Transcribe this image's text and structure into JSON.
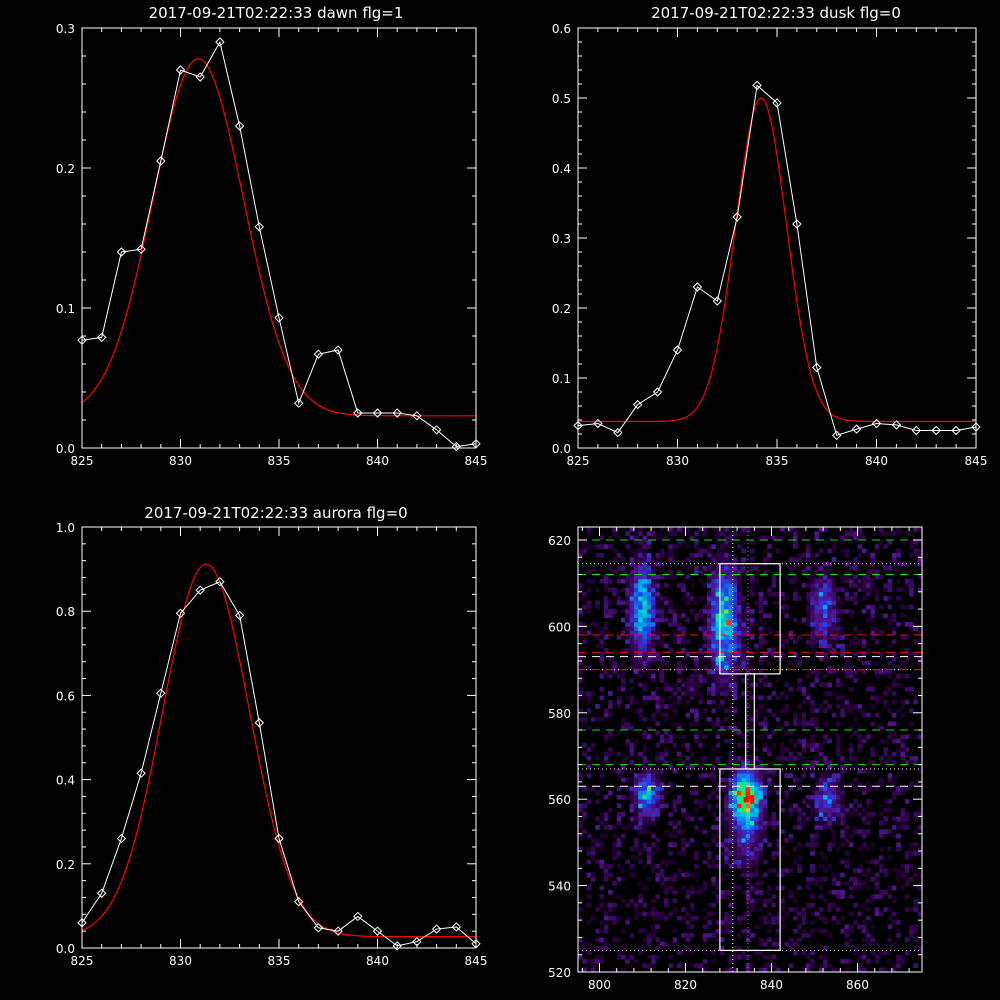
{
  "chart_data": [
    {
      "type": "line",
      "title": "2017-09-21T02:22:33 dawn flg=1",
      "xlim": [
        825,
        845
      ],
      "ylim": [
        0.0,
        0.3
      ],
      "xticks": [
        825,
        830,
        835,
        840,
        845
      ],
      "xtick_labels": [
        "825",
        "830",
        "835",
        "840",
        "845"
      ],
      "yticks": [
        0.0,
        0.1,
        0.2,
        0.3
      ],
      "ytick_labels": [
        "0.0",
        "0.1",
        "0.2",
        "0.3"
      ],
      "grid": false,
      "series": [
        {
          "style": "data",
          "color": "#ffffff",
          "marker": "diamond",
          "x": [
            825,
            826,
            827,
            828,
            829,
            830,
            831,
            832,
            833,
            834,
            835,
            836,
            837,
            838,
            839,
            840,
            841,
            842,
            843,
            844,
            845
          ],
          "y": [
            0.077,
            0.079,
            0.14,
            0.142,
            0.205,
            0.27,
            0.265,
            0.29,
            0.23,
            0.158,
            0.093,
            0.032,
            0.067,
            0.07,
            0.025,
            0.025,
            0.025,
            0.023,
            0.013,
            0.001,
            0.003
          ]
        },
        {
          "style": "fit",
          "color": "#ff0000",
          "gauss": {
            "amp": 0.255,
            "center": 830.9,
            "sigma": 2.3,
            "offset": 0.023
          }
        }
      ]
    },
    {
      "type": "line",
      "title": "2017-09-21T02:22:33 dusk flg=0",
      "xlim": [
        825,
        845
      ],
      "ylim": [
        0.0,
        0.6
      ],
      "xticks": [
        825,
        830,
        835,
        840,
        845
      ],
      "xtick_labels": [
        "825",
        "830",
        "835",
        "840",
        "845"
      ],
      "yticks": [
        0.0,
        0.1,
        0.2,
        0.3,
        0.4,
        0.5,
        0.6
      ],
      "ytick_labels": [
        "0.0",
        "0.1",
        "0.2",
        "0.3",
        "0.4",
        "0.5",
        "0.6"
      ],
      "grid": false,
      "series": [
        {
          "style": "data",
          "color": "#ffffff",
          "marker": "diamond",
          "x": [
            825,
            826,
            827,
            828,
            829,
            830,
            831,
            832,
            833,
            834,
            835,
            836,
            837,
            838,
            839,
            840,
            841,
            842,
            843,
            844,
            845
          ],
          "y": [
            0.032,
            0.035,
            0.022,
            0.062,
            0.08,
            0.14,
            0.23,
            0.21,
            0.33,
            0.518,
            0.493,
            0.32,
            0.115,
            0.018,
            0.027,
            0.035,
            0.033,
            0.025,
            0.025,
            0.025,
            0.03
          ]
        },
        {
          "style": "fit",
          "color": "#ff0000",
          "gauss": {
            "amp": 0.462,
            "center": 834.2,
            "sigma": 1.28,
            "offset": 0.038
          }
        }
      ]
    },
    {
      "type": "line",
      "title": "2017-09-21T02:22:33 aurora flg=0",
      "xlim": [
        825,
        845
      ],
      "ylim": [
        0.0,
        1.0
      ],
      "xticks": [
        825,
        830,
        835,
        840,
        845
      ],
      "xtick_labels": [
        "825",
        "830",
        "835",
        "840",
        "845"
      ],
      "yticks": [
        0.0,
        0.2,
        0.4,
        0.6,
        0.8,
        1.0
      ],
      "ytick_labels": [
        "0.0",
        "0.2",
        "0.4",
        "0.6",
        "0.8",
        "1.0"
      ],
      "grid": false,
      "series": [
        {
          "style": "data",
          "color": "#ffffff",
          "marker": "diamond",
          "x": [
            825,
            826,
            827,
            828,
            829,
            830,
            831,
            832,
            833,
            834,
            835,
            836,
            837,
            838,
            839,
            840,
            841,
            842,
            843,
            844,
            845
          ],
          "y": [
            0.06,
            0.13,
            0.26,
            0.415,
            0.605,
            0.795,
            0.85,
            0.87,
            0.79,
            0.535,
            0.26,
            0.11,
            0.048,
            0.04,
            0.075,
            0.04,
            0.005,
            0.015,
            0.045,
            0.05,
            0.01
          ]
        },
        {
          "style": "fit",
          "color": "#ff0000",
          "gauss": {
            "amp": 0.885,
            "center": 831.3,
            "sigma": 2.2,
            "offset": 0.027
          }
        }
      ]
    },
    {
      "type": "heatmap",
      "title": "",
      "xlim": [
        795,
        875
      ],
      "ylim": [
        520,
        623
      ],
      "xticks": [
        800,
        820,
        840,
        860
      ],
      "xtick_labels": [
        "800",
        "820",
        "840",
        "860"
      ],
      "yticks": [
        520,
        540,
        560,
        580,
        600,
        620
      ],
      "ytick_labels": [
        "520",
        "540",
        "560",
        "580",
        "600",
        "620"
      ],
      "grid": false,
      "colormap": "rainbow-on-black",
      "blobs": [
        {
          "x": 810,
          "y": 604,
          "sx": 2.0,
          "sy": 7.5,
          "amp": 0.55
        },
        {
          "x": 811,
          "y": 561,
          "sx": 2.0,
          "sy": 3.5,
          "amp": 0.52
        },
        {
          "x": 829,
          "y": 601,
          "sx": 2.3,
          "sy": 8.5,
          "amp": 0.62
        },
        {
          "x": 834,
          "y": 561,
          "sx": 2.3,
          "sy": 4.0,
          "amp": 0.85
        },
        {
          "x": 834,
          "y": 553,
          "sx": 2.5,
          "sy": 6.0,
          "amp": 0.3
        },
        {
          "x": 852,
          "y": 604,
          "sx": 2.2,
          "sy": 6.0,
          "amp": 0.32
        },
        {
          "x": 853,
          "y": 560,
          "sx": 2.2,
          "sy": 4.0,
          "amp": 0.33
        }
      ],
      "hot_pixels": [
        {
          "x": 834,
          "y": 560,
          "color": "#ff0000"
        },
        {
          "x": 830,
          "y": 601,
          "color": "#ff3030"
        }
      ],
      "hlines": [
        {
          "y": 620,
          "color": "#00e000",
          "dash": "long"
        },
        {
          "y": 612,
          "color": "#00e000",
          "dash": "long"
        },
        {
          "y": 576,
          "color": "#00e000",
          "dash": "long"
        },
        {
          "y": 568,
          "color": "#00e000",
          "dash": "long"
        },
        {
          "y": 614.5,
          "color": "#ffffff",
          "dash": "dot"
        },
        {
          "y": 590,
          "color": "#ffffff",
          "dash": "dot"
        },
        {
          "y": 567,
          "color": "#ffffff",
          "dash": "dot"
        },
        {
          "y": 525,
          "color": "#ffffff",
          "dash": "dot"
        },
        {
          "y": 598,
          "color": "#ff0000",
          "dash": "long"
        },
        {
          "y": 594,
          "color": "#ff0000",
          "dash": "long"
        },
        {
          "y": 590,
          "color": "#ff0000",
          "dash": "long"
        },
        {
          "y": 593,
          "color": "#ffffff",
          "dash": "long"
        },
        {
          "y": 563,
          "color": "#ffffff",
          "dash": "long"
        }
      ],
      "vlines": [
        {
          "x": 831,
          "color": "#ffffff",
          "dash": "dot"
        },
        {
          "x": 834.5,
          "color": "#ff40ff",
          "dash": "dot"
        }
      ],
      "boxes": [
        {
          "x0": 828,
          "x1": 842,
          "y0": 589,
          "y1": 614.5,
          "color": "#ffffff"
        },
        {
          "x0": 834,
          "x1": 836,
          "y0": 567,
          "y1": 589,
          "color": "#ffffff"
        },
        {
          "x0": 828,
          "x1": 842,
          "y0": 525,
          "y1": 567,
          "color": "#ffffff"
        }
      ]
    }
  ]
}
